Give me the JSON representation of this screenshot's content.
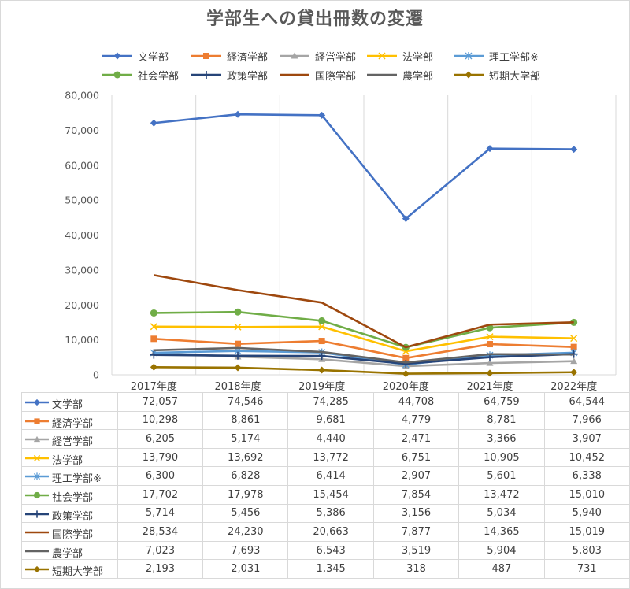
{
  "chart_data": {
    "type": "line",
    "title": "学部生への貸出冊数の変遷",
    "categories": [
      "2017年度",
      "2018年度",
      "2019年度",
      "2020年度",
      "2021年度",
      "2022年度"
    ],
    "ylim": [
      0,
      80000
    ],
    "yticks": [
      "0",
      "10,000",
      "20,000",
      "30,000",
      "40,000",
      "50,000",
      "60,000",
      "70,000",
      "80,000"
    ],
    "grid": "vertical",
    "legend_position": "top",
    "series": [
      {
        "name": "文学部",
        "color": "#4472c4",
        "marker": "diamond",
        "values": [
          72057,
          74546,
          74285,
          44708,
          64759,
          64544
        ],
        "labels": [
          "72,057",
          "74,546",
          "74,285",
          "44,708",
          "64,759",
          "64,544"
        ]
      },
      {
        "name": "経済学部",
        "color": "#ed7d31",
        "marker": "square",
        "values": [
          10298,
          8861,
          9681,
          4779,
          8781,
          7966
        ],
        "labels": [
          "10,298",
          "8,861",
          "9,681",
          "4,779",
          "8,781",
          "7,966"
        ]
      },
      {
        "name": "経営学部",
        "color": "#a5a5a5",
        "marker": "triangle",
        "values": [
          6205,
          5174,
          4440,
          2471,
          3366,
          3907
        ],
        "labels": [
          "6,205",
          "5,174",
          "4,440",
          "2,471",
          "3,366",
          "3,907"
        ]
      },
      {
        "name": "法学部",
        "color": "#ffc000",
        "marker": "x",
        "values": [
          13790,
          13692,
          13772,
          6751,
          10905,
          10452
        ],
        "labels": [
          "13,790",
          "13,692",
          "13,772",
          "6,751",
          "10,905",
          "10,452"
        ]
      },
      {
        "name": "理工学部※",
        "color": "#5b9bd5",
        "marker": "star",
        "values": [
          6300,
          6828,
          6414,
          2907,
          5601,
          6338
        ],
        "labels": [
          "6,300",
          "6,828",
          "6,414",
          "2,907",
          "5,601",
          "6,338"
        ]
      },
      {
        "name": "社会学部",
        "color": "#70ad47",
        "marker": "circle",
        "values": [
          17702,
          17978,
          15454,
          7854,
          13472,
          15010
        ],
        "labels": [
          "17,702",
          "17,978",
          "15,454",
          "7,854",
          "13,472",
          "15,010"
        ]
      },
      {
        "name": "政策学部",
        "color": "#264478",
        "marker": "plus",
        "values": [
          5714,
          5456,
          5386,
          3156,
          5034,
          5940
        ],
        "labels": [
          "5,714",
          "5,456",
          "5,386",
          "3,156",
          "5,034",
          "5,940"
        ]
      },
      {
        "name": "国際学部",
        "color": "#9e480e",
        "marker": "none",
        "values": [
          28534,
          24230,
          20663,
          7877,
          14365,
          15019
        ],
        "labels": [
          "28,534",
          "24,230",
          "20,663",
          "7,877",
          "14,365",
          "15,019"
        ]
      },
      {
        "name": "農学部",
        "color": "#636363",
        "marker": "none",
        "values": [
          7023,
          7693,
          6543,
          3519,
          5904,
          5803
        ],
        "labels": [
          "7,023",
          "7,693",
          "6,543",
          "3,519",
          "5,904",
          "5,803"
        ]
      },
      {
        "name": "短期大学部",
        "color": "#997300",
        "marker": "diamond",
        "values": [
          2193,
          2031,
          1345,
          318,
          487,
          731
        ],
        "labels": [
          "2,193",
          "2,031",
          "1,345",
          "318",
          "487",
          "731"
        ]
      }
    ]
  }
}
